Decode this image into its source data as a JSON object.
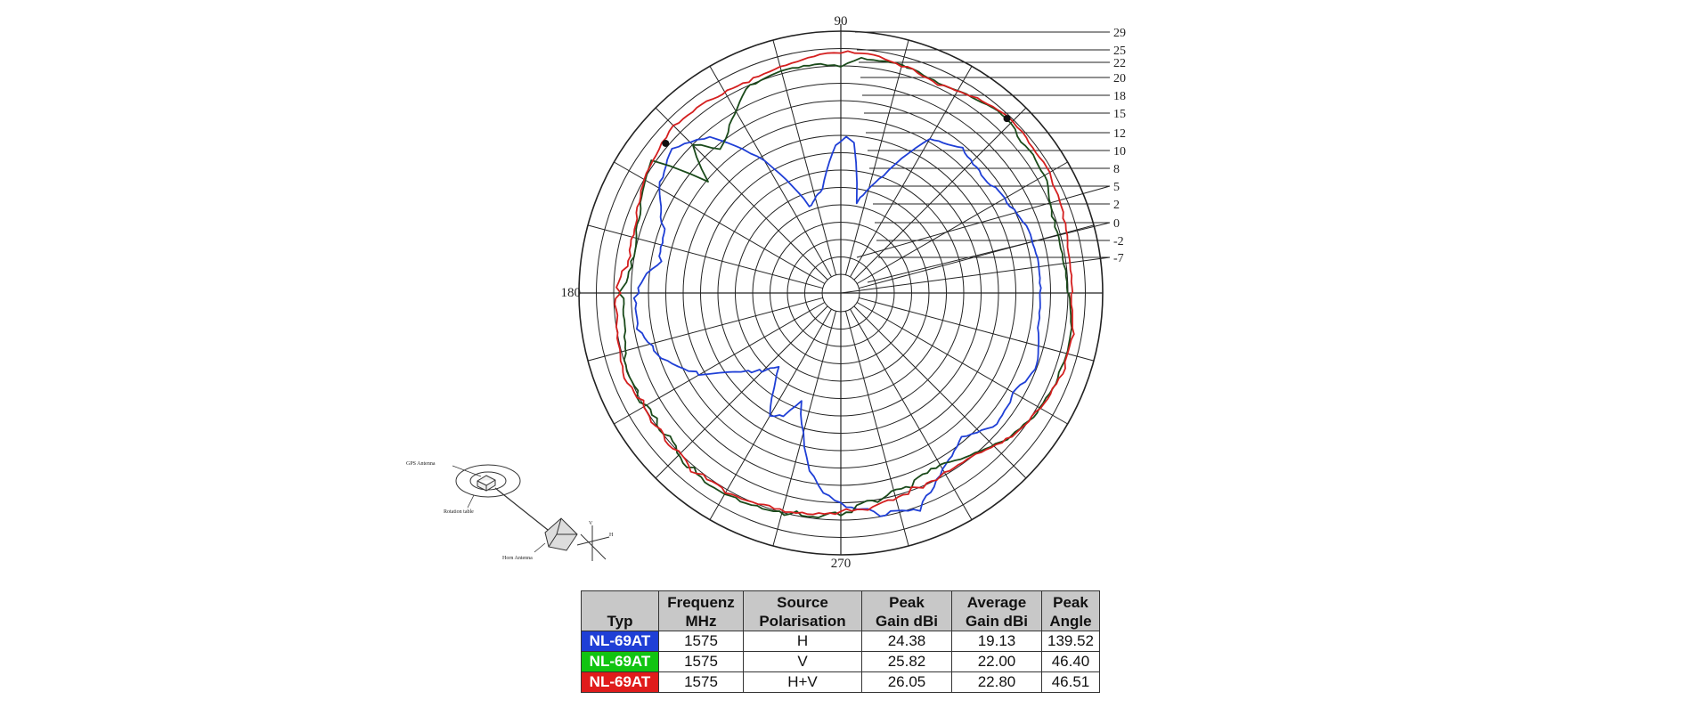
{
  "chart_data": {
    "type": "polar-line",
    "angle_labels": [
      "90",
      "180",
      "270"
    ],
    "scale_labels": [
      "29",
      "25",
      "22",
      "20",
      "18",
      "15",
      "12",
      "10",
      "8",
      "5",
      "2",
      "0",
      "-2",
      "-7"
    ],
    "rings": 14,
    "grid": true,
    "grid_color": "#222222",
    "series": [
      {
        "name": "NL-69AT",
        "polarisation": "H",
        "color": "#1f3fd6",
        "theta": [
          0,
          10,
          20,
          30,
          40,
          50,
          60,
          70,
          80,
          85,
          88,
          90,
          92,
          95,
          100,
          110,
          120,
          130,
          139.5,
          150,
          160,
          170,
          180,
          190,
          200,
          210,
          215,
          220,
          225,
          230,
          235,
          240,
          245,
          250,
          255,
          260,
          265,
          270,
          280,
          290,
          300,
          310,
          320,
          330,
          340,
          350,
          360
        ],
        "r": [
          0.76,
          0.76,
          0.75,
          0.72,
          0.7,
          0.72,
          0.68,
          0.48,
          0.35,
          0.58,
          0.6,
          0.58,
          0.56,
          0.5,
          0.4,
          0.35,
          0.58,
          0.78,
          0.85,
          0.8,
          0.72,
          0.7,
          0.78,
          0.78,
          0.72,
          0.62,
          0.52,
          0.46,
          0.42,
          0.38,
          0.45,
          0.55,
          0.52,
          0.45,
          0.55,
          0.68,
          0.76,
          0.8,
          0.86,
          0.88,
          0.78,
          0.72,
          0.78,
          0.76,
          0.8,
          0.76,
          0.76
        ]
      },
      {
        "name": "NL-69AT",
        "polarisation": "V",
        "color": "#1a4a1a",
        "theta": [
          0,
          10,
          20,
          30,
          40,
          46.4,
          55,
          65,
          75,
          85,
          90,
          95,
          105,
          115,
          125,
          130,
          135,
          140,
          145,
          150,
          160,
          170,
          180,
          190,
          200,
          210,
          220,
          230,
          240,
          250,
          260,
          270,
          280,
          290,
          300,
          310,
          320,
          330,
          340,
          350,
          360
        ],
        "r": [
          0.87,
          0.86,
          0.86,
          0.9,
          0.9,
          0.92,
          0.9,
          0.88,
          0.9,
          0.9,
          0.86,
          0.88,
          0.88,
          0.86,
          0.75,
          0.72,
          0.8,
          0.66,
          0.88,
          0.86,
          0.82,
          0.8,
          0.84,
          0.84,
          0.88,
          0.86,
          0.86,
          0.88,
          0.88,
          0.87,
          0.86,
          0.84,
          0.8,
          0.78,
          0.76,
          0.8,
          0.85,
          0.88,
          0.89,
          0.89,
          0.87
        ]
      },
      {
        "name": "NL-69AT",
        "polarisation": "H+V",
        "color": "#d41f1f",
        "theta": [
          0,
          10,
          20,
          30,
          40,
          46.5,
          55,
          65,
          75,
          85,
          90,
          95,
          105,
          115,
          125,
          135,
          140,
          145,
          150,
          160,
          170,
          180,
          190,
          200,
          210,
          220,
          230,
          240,
          250,
          260,
          270,
          280,
          290,
          300,
          310,
          320,
          330,
          340,
          350,
          360
        ],
        "r": [
          0.88,
          0.88,
          0.9,
          0.92,
          0.92,
          0.93,
          0.91,
          0.88,
          0.9,
          0.92,
          0.92,
          0.91,
          0.89,
          0.88,
          0.89,
          0.9,
          0.89,
          0.88,
          0.87,
          0.83,
          0.82,
          0.85,
          0.86,
          0.88,
          0.86,
          0.87,
          0.88,
          0.88,
          0.87,
          0.86,
          0.84,
          0.82,
          0.8,
          0.79,
          0.8,
          0.85,
          0.88,
          0.9,
          0.9,
          0.88
        ]
      }
    ],
    "markers": [
      {
        "theta": 46.4,
        "r": 0.92
      },
      {
        "theta": 139.5,
        "r": 0.88
      }
    ]
  },
  "setup": {
    "gps_label": "GPS Antenna",
    "table_label": "Rotation table",
    "horn_label": "Horn Antenna",
    "v_label": "V",
    "h_label": "H"
  },
  "table": {
    "headers": [
      [
        "Typ"
      ],
      [
        "Frequenz",
        "MHz"
      ],
      [
        "Source",
        "Polarisation"
      ],
      [
        "Peak",
        "Gain dBi"
      ],
      [
        "Average",
        "Gain dBi"
      ],
      [
        "Peak",
        "Angle"
      ]
    ],
    "rows": [
      {
        "typ": "NL-69AT",
        "color": "#1f3fd6",
        "freq": "1575",
        "pol": "H",
        "peak": "24.38",
        "avg": "19.13",
        "angle": "139.52"
      },
      {
        "typ": "NL-69AT",
        "color": "#11c411",
        "freq": "1575",
        "pol": "V",
        "peak": "25.82",
        "avg": "22.00",
        "angle": "46.40"
      },
      {
        "typ": "NL-69AT",
        "color": "#e01b1b",
        "freq": "1575",
        "pol": "H+V",
        "peak": "26.05",
        "avg": "22.80",
        "angle": "46.51"
      }
    ]
  }
}
